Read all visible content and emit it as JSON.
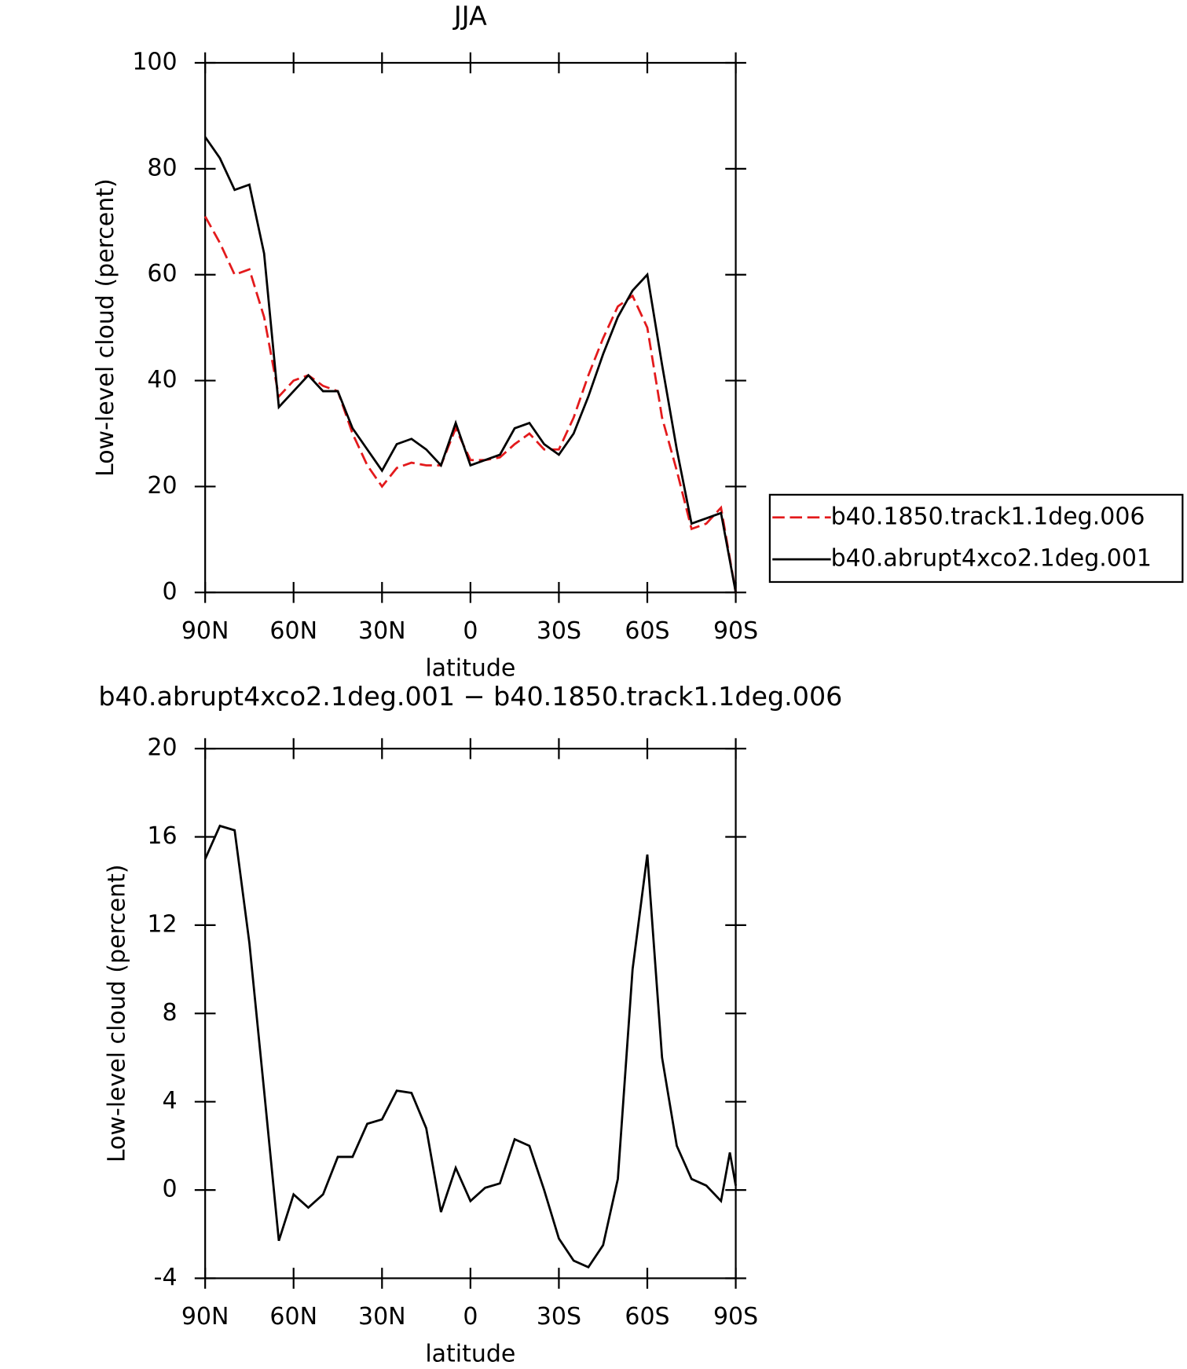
{
  "chart_data": [
    {
      "type": "line",
      "title": "JJA",
      "xlabel": "latitude",
      "ylabel": "Low-level cloud (percent)",
      "x": [
        90,
        85,
        80,
        75,
        70,
        65,
        60,
        55,
        50,
        45,
        40,
        35,
        30,
        25,
        20,
        15,
        10,
        5,
        0,
        -5,
        -10,
        -15,
        -20,
        -25,
        -30,
        -35,
        -40,
        -45,
        -50,
        -55,
        -60,
        -65,
        -70,
        -75,
        -80,
        -85,
        -90
      ],
      "series": [
        {
          "name": "b40.1850.track1.1deg.006",
          "color": "#e31a1c",
          "dash": true,
          "values": [
            71,
            66,
            60,
            61,
            52,
            37,
            40,
            41,
            39,
            38,
            30,
            24,
            20,
            23.5,
            24.5,
            24,
            24,
            31,
            25,
            25,
            25.5,
            28,
            30,
            27,
            27,
            33,
            41,
            48,
            54,
            56,
            50,
            33,
            23,
            12,
            13,
            16,
            0
          ]
        },
        {
          "name": "b40.abrupt4xco2.1deg.001",
          "color": "#000000",
          "dash": false,
          "values": [
            86,
            82,
            76,
            77,
            64,
            35,
            38,
            41,
            38,
            38,
            31,
            27,
            23,
            28,
            29,
            27,
            24,
            32,
            24,
            25,
            26,
            31,
            32,
            28,
            26,
            30,
            37,
            45,
            52,
            57,
            60,
            43,
            27,
            13,
            14,
            15,
            0
          ]
        }
      ],
      "xlim": [
        90,
        -90
      ],
      "xticks": [
        {
          "value": 90,
          "label": "90N"
        },
        {
          "value": 60,
          "label": "60N"
        },
        {
          "value": 30,
          "label": "30N"
        },
        0,
        {
          "value": -30,
          "label": "30S"
        },
        {
          "value": -60,
          "label": "60S"
        },
        {
          "value": -90,
          "label": "90S"
        }
      ],
      "ylim": [
        0,
        100
      ],
      "yticks": [
        0,
        20,
        40,
        60,
        80,
        100
      ],
      "legend": "right"
    },
    {
      "type": "line",
      "title": "b40.abrupt4xco2.1deg.001 − b40.1850.track1.1deg.006",
      "xlabel": "latitude",
      "ylabel": "Low-level cloud (percent)",
      "x": [
        90,
        85,
        80,
        75,
        70,
        65,
        60,
        55,
        50,
        45,
        40,
        35,
        30,
        25,
        20,
        15,
        10,
        5,
        0,
        -5,
        -10,
        -15,
        -20,
        -25,
        -30,
        -35,
        -40,
        -45,
        -50,
        -55,
        -60,
        -65,
        -70,
        -75,
        -80,
        -85,
        -88,
        -90
      ],
      "series": [
        {
          "color": "#000000",
          "dash": false,
          "values": [
            15,
            16.5,
            16.3,
            11.2,
            4.5,
            -2.3,
            -0.2,
            -0.8,
            -0.2,
            1.5,
            1.5,
            3,
            3.2,
            4.5,
            4.4,
            2.8,
            -1,
            1,
            -0.5,
            0.1,
            0.3,
            2.3,
            2,
            0,
            -2.2,
            -3.2,
            -3.5,
            -2.5,
            0.5,
            10,
            15.2,
            6,
            2,
            0.5,
            0.2,
            -0.5,
            1.7,
            0.2
          ]
        }
      ],
      "xlim": [
        90,
        -90
      ],
      "xticks": [
        {
          "value": 90,
          "label": "90N"
        },
        {
          "value": 60,
          "label": "60N"
        },
        {
          "value": 30,
          "label": "30N"
        },
        0,
        {
          "value": -30,
          "label": "30S"
        },
        {
          "value": -60,
          "label": "60S"
        },
        {
          "value": -90,
          "label": "90S"
        }
      ],
      "ylim": [
        -4,
        20
      ],
      "yticks": [
        -4,
        0,
        4,
        8,
        12,
        16,
        20
      ]
    }
  ]
}
